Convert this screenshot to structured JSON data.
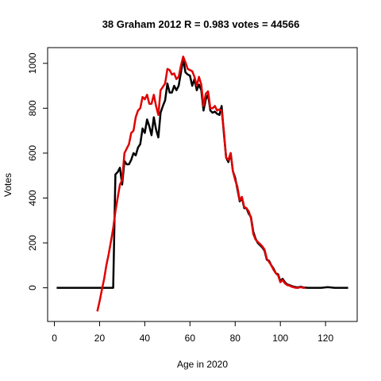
{
  "chart_data": {
    "type": "line",
    "title": "38 Graham 2012 R = 0.983 votes = 44566",
    "xlabel": "Age in 2020",
    "ylabel": "Votes",
    "xlim": [
      -3,
      134
    ],
    "ylim": [
      -150,
      1070
    ],
    "x_ticks": [
      0,
      20,
      40,
      60,
      80,
      100,
      120
    ],
    "y_ticks": [
      0,
      200,
      400,
      600,
      800,
      1000
    ],
    "grid": false,
    "legend": "none",
    "series": [
      {
        "color": "#000000",
        "points": [
          [
            1,
            0
          ],
          [
            5,
            0
          ],
          [
            10,
            0
          ],
          [
            15,
            0
          ],
          [
            20,
            0
          ],
          [
            25,
            0
          ],
          [
            26,
            0
          ],
          [
            27,
            505
          ],
          [
            28,
            515
          ],
          [
            29,
            535
          ],
          [
            30,
            460
          ],
          [
            31,
            565
          ],
          [
            32,
            550
          ],
          [
            33,
            550
          ],
          [
            34,
            570
          ],
          [
            35,
            600
          ],
          [
            36,
            590
          ],
          [
            37,
            625
          ],
          [
            38,
            640
          ],
          [
            39,
            710
          ],
          [
            40,
            690
          ],
          [
            41,
            750
          ],
          [
            42,
            720
          ],
          [
            43,
            680
          ],
          [
            44,
            760
          ],
          [
            45,
            705
          ],
          [
            46,
            670
          ],
          [
            47,
            780
          ],
          [
            48,
            810
          ],
          [
            49,
            835
          ],
          [
            50,
            910
          ],
          [
            51,
            870
          ],
          [
            52,
            870
          ],
          [
            53,
            900
          ],
          [
            54,
            880
          ],
          [
            55,
            900
          ],
          [
            56,
            960
          ],
          [
            57,
            1020
          ],
          [
            58,
            960
          ],
          [
            59,
            950
          ],
          [
            60,
            945
          ],
          [
            61,
            900
          ],
          [
            62,
            930
          ],
          [
            63,
            880
          ],
          [
            64,
            905
          ],
          [
            65,
            880
          ],
          [
            66,
            790
          ],
          [
            67,
            840
          ],
          [
            68,
            860
          ],
          [
            69,
            790
          ],
          [
            70,
            780
          ],
          [
            71,
            785
          ],
          [
            72,
            775
          ],
          [
            73,
            770
          ],
          [
            74,
            810
          ],
          [
            75,
            690
          ],
          [
            76,
            580
          ],
          [
            77,
            560
          ],
          [
            78,
            600
          ],
          [
            79,
            520
          ],
          [
            80,
            490
          ],
          [
            81,
            440
          ],
          [
            82,
            385
          ],
          [
            83,
            400
          ],
          [
            84,
            355
          ],
          [
            85,
            355
          ],
          [
            86,
            330
          ],
          [
            87,
            315
          ],
          [
            88,
            250
          ],
          [
            89,
            220
          ],
          [
            90,
            200
          ],
          [
            91,
            190
          ],
          [
            92,
            180
          ],
          [
            93,
            165
          ],
          [
            94,
            125
          ],
          [
            95,
            120
          ],
          [
            96,
            100
          ],
          [
            97,
            85
          ],
          [
            98,
            65
          ],
          [
            99,
            60
          ],
          [
            100,
            30
          ],
          [
            101,
            40
          ],
          [
            102,
            25
          ],
          [
            103,
            15
          ],
          [
            104,
            12
          ],
          [
            105,
            8
          ],
          [
            106,
            5
          ],
          [
            107,
            3
          ],
          [
            108,
            2
          ],
          [
            109,
            5
          ],
          [
            110,
            2
          ],
          [
            112,
            0
          ],
          [
            115,
            0
          ],
          [
            118,
            0
          ],
          [
            121,
            3
          ],
          [
            124,
            0
          ],
          [
            127,
            0
          ],
          [
            130,
            0
          ]
        ]
      },
      {
        "color": "#e00000",
        "points": [
          [
            19,
            -105
          ],
          [
            20,
            -60
          ],
          [
            21,
            -10
          ],
          [
            22,
            40
          ],
          [
            23,
            100
          ],
          [
            24,
            150
          ],
          [
            25,
            205
          ],
          [
            26,
            265
          ],
          [
            27,
            340
          ],
          [
            28,
            400
          ],
          [
            29,
            460
          ],
          [
            30,
            480
          ],
          [
            31,
            600
          ],
          [
            32,
            620
          ],
          [
            33,
            640
          ],
          [
            34,
            690
          ],
          [
            35,
            700
          ],
          [
            36,
            760
          ],
          [
            37,
            790
          ],
          [
            38,
            800
          ],
          [
            39,
            850
          ],
          [
            40,
            840
          ],
          [
            41,
            860
          ],
          [
            42,
            820
          ],
          [
            43,
            820
          ],
          [
            44,
            860
          ],
          [
            45,
            810
          ],
          [
            46,
            770
          ],
          [
            47,
            880
          ],
          [
            48,
            895
          ],
          [
            49,
            910
          ],
          [
            50,
            975
          ],
          [
            51,
            970
          ],
          [
            52,
            950
          ],
          [
            53,
            955
          ],
          [
            54,
            930
          ],
          [
            55,
            940
          ],
          [
            56,
            990
          ],
          [
            57,
            1030
          ],
          [
            58,
            1005
          ],
          [
            59,
            975
          ],
          [
            60,
            970
          ],
          [
            61,
            965
          ],
          [
            62,
            940
          ],
          [
            63,
            900
          ],
          [
            64,
            940
          ],
          [
            65,
            905
          ],
          [
            66,
            810
          ],
          [
            67,
            865
          ],
          [
            68,
            875
          ],
          [
            69,
            800
          ],
          [
            70,
            800
          ],
          [
            71,
            810
          ],
          [
            72,
            790
          ],
          [
            73,
            795
          ],
          [
            74,
            790
          ],
          [
            75,
            700
          ],
          [
            76,
            580
          ],
          [
            77,
            570
          ],
          [
            78,
            600
          ],
          [
            79,
            520
          ],
          [
            80,
            480
          ],
          [
            81,
            450
          ],
          [
            82,
            390
          ],
          [
            83,
            405
          ],
          [
            84,
            360
          ],
          [
            85,
            355
          ],
          [
            86,
            340
          ],
          [
            87,
            310
          ],
          [
            88,
            240
          ],
          [
            89,
            215
          ],
          [
            90,
            205
          ],
          [
            91,
            195
          ],
          [
            92,
            185
          ],
          [
            93,
            170
          ],
          [
            94,
            130
          ],
          [
            95,
            115
          ],
          [
            96,
            100
          ],
          [
            97,
            80
          ],
          [
            98,
            65
          ],
          [
            99,
            55
          ],
          [
            100,
            25
          ],
          [
            101,
            35
          ],
          [
            102,
            20
          ],
          [
            103,
            12
          ],
          [
            104,
            10
          ],
          [
            105,
            5
          ],
          [
            106,
            2
          ],
          [
            107,
            0
          ],
          [
            108,
            0
          ],
          [
            109,
            3
          ],
          [
            110,
            0
          ],
          [
            111,
            0
          ]
        ]
      }
    ]
  }
}
